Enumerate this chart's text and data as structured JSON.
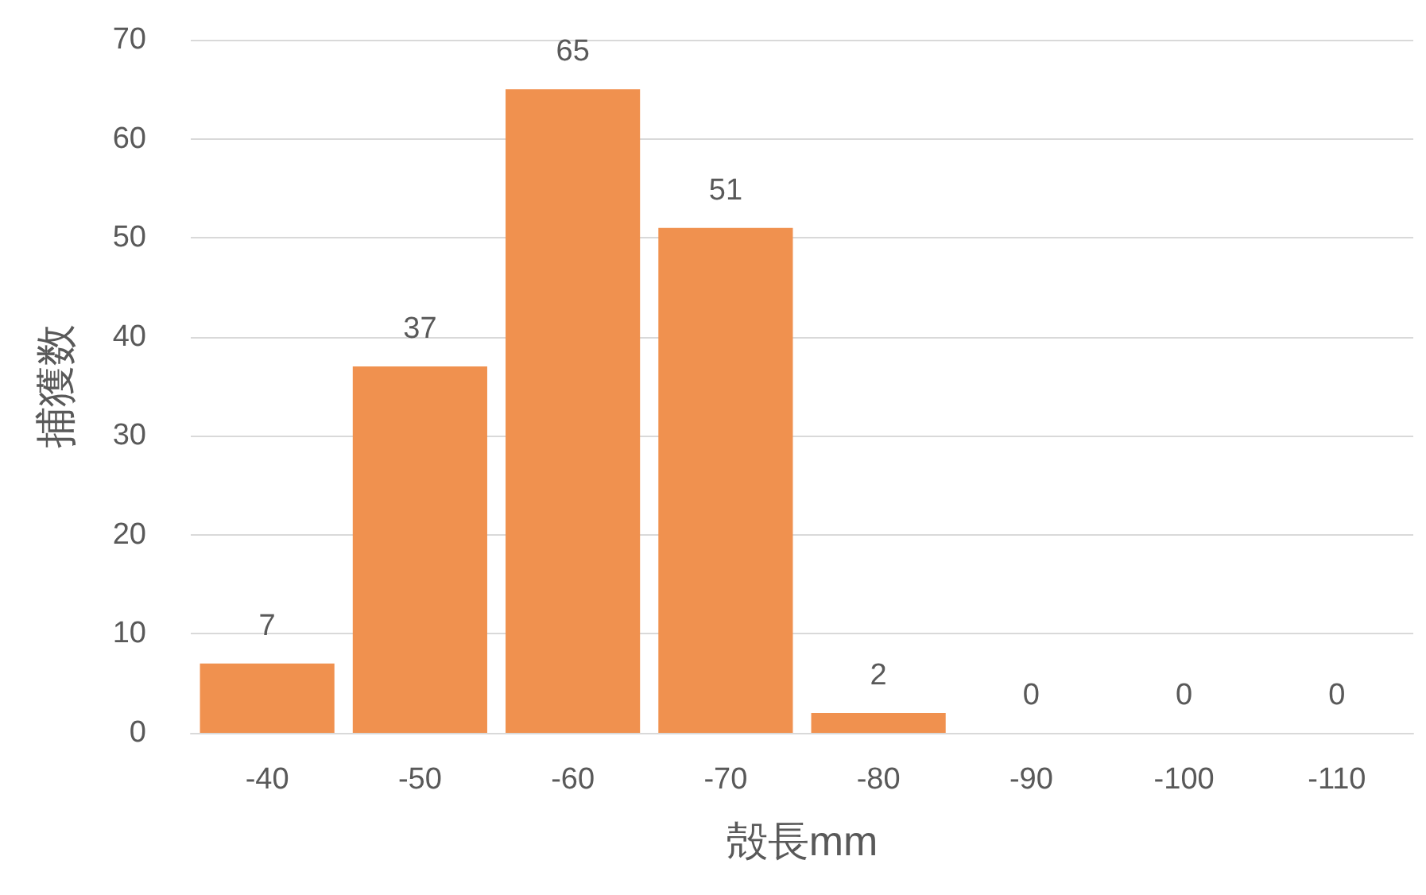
{
  "chart_data": {
    "type": "bar",
    "xlabel": "殻長mm",
    "ylabel": "捕獲数",
    "categories": [
      "-40",
      "-50",
      "-60",
      "-70",
      "-80",
      "-90",
      "-100",
      "-110"
    ],
    "values": [
      7,
      37,
      65,
      51,
      2,
      0,
      0,
      0
    ],
    "color": "#f0914f",
    "ylim": [
      0,
      70
    ],
    "yticks": [
      0,
      10,
      20,
      30,
      40,
      50,
      60,
      70
    ],
    "grid": "y",
    "data_labels": true
  }
}
